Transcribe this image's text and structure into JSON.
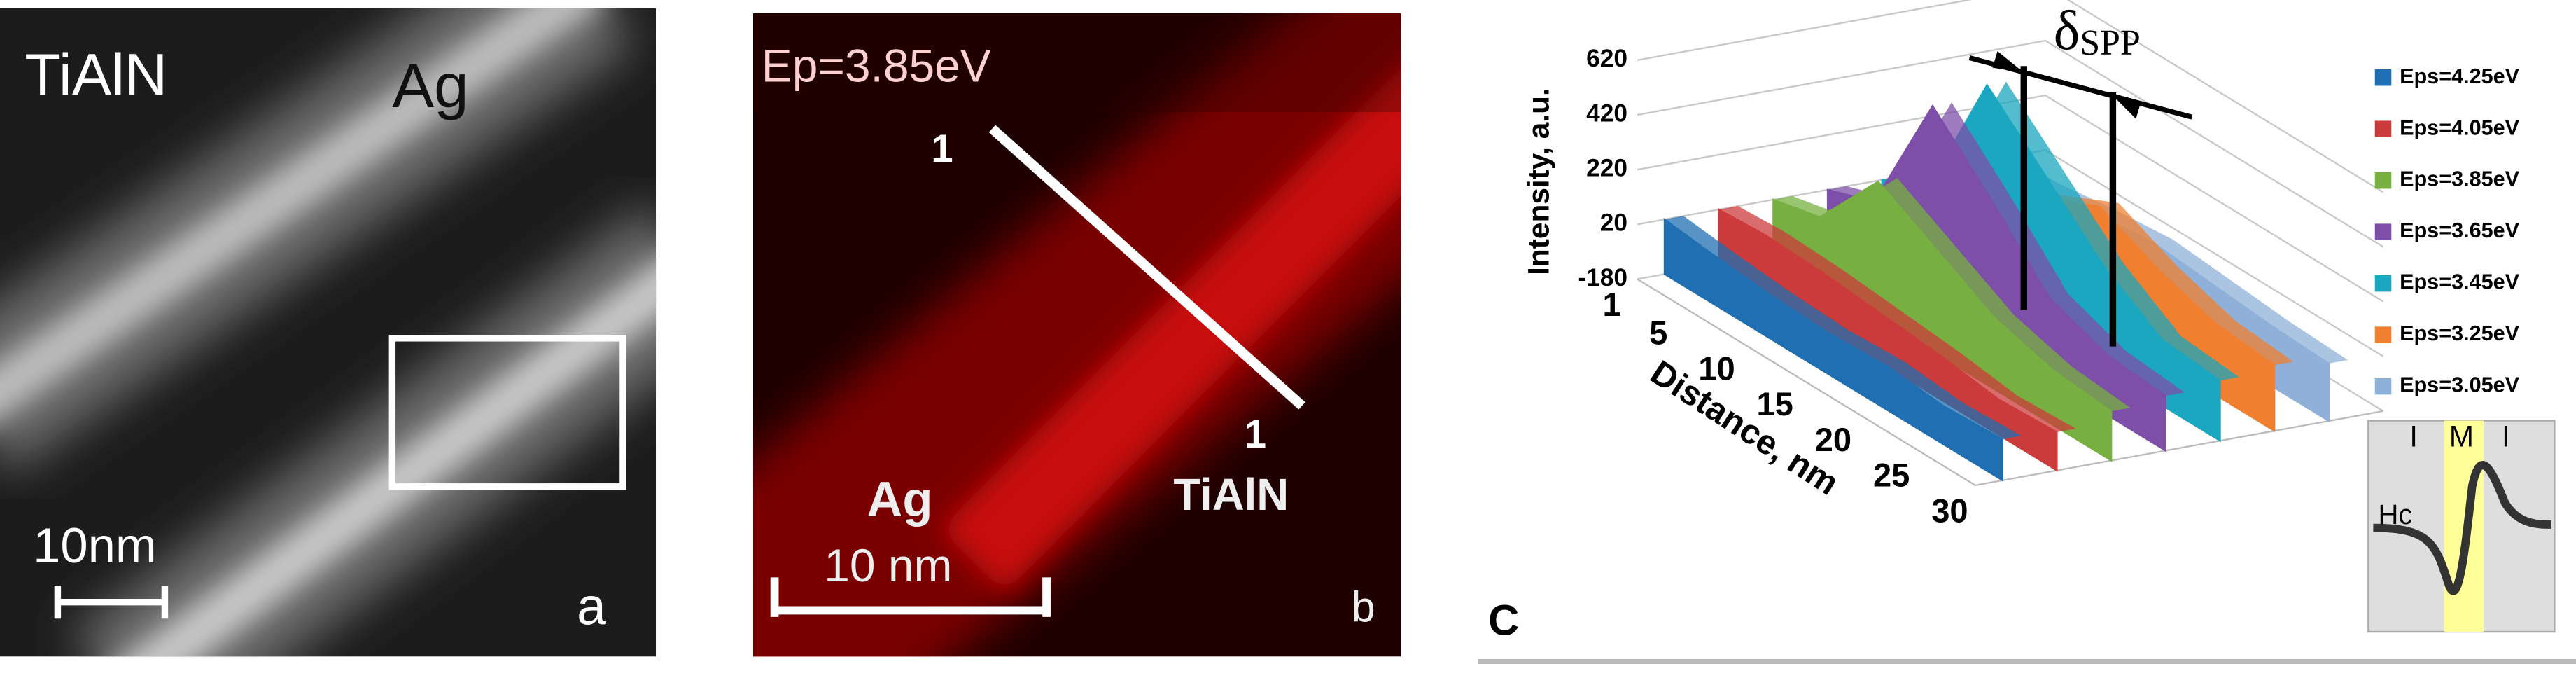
{
  "panel_a": {
    "label_material": "TiAlN",
    "label_metal": "Ag",
    "scale": "10nm",
    "letter": "a"
  },
  "panel_b": {
    "energy": "Ep=3.85eV",
    "start": "1",
    "end": "1",
    "label_metal": "Ag",
    "scale": "10 nm",
    "label_material": "TiAlN",
    "letter": "b"
  },
  "panel_c": {
    "letter": "C",
    "annotation_symbol": "δ",
    "annotation_subscript": "SPP",
    "inset": {
      "left": "I",
      "middle": "M",
      "right": "I",
      "field": "Hc"
    }
  },
  "chart_data": {
    "type": "area3d",
    "y_label": "Intensity, a.u.",
    "x_label": "Distance, nm",
    "x": [
      1,
      5,
      10,
      15,
      20,
      25,
      30
    ],
    "xticks": [
      1,
      5,
      10,
      15,
      20,
      25,
      30
    ],
    "ylim": [
      -180,
      620
    ],
    "yticks": [
      620,
      420,
      220,
      20,
      -180
    ],
    "series": [
      {
        "name": "Eps=4.25eV",
        "color": "#1f6fb2",
        "values": [
          20,
          0,
          -20,
          -30,
          -20,
          -40,
          -30
        ]
      },
      {
        "name": "Eps=4.05eV",
        "color": "#cc3b3b",
        "values": [
          20,
          30,
          20,
          0,
          -20,
          -50,
          -40
        ]
      },
      {
        "name": "Eps=3.85eV",
        "color": "#77b040",
        "values": [
          20,
          60,
          320,
          200,
          80,
          20,
          0
        ]
      },
      {
        "name": "Eps=3.65eV",
        "color": "#7d4fa8",
        "values": [
          20,
          80,
          560,
          350,
          120,
          40,
          20
        ]
      },
      {
        "name": "Eps=3.45eV",
        "color": "#1aa7bf",
        "values": [
          20,
          100,
          600,
          400,
          200,
          60,
          40
        ]
      },
      {
        "name": "Eps=3.25eV",
        "color": "#f08030",
        "values": [
          20,
          40,
          150,
          250,
          150,
          80,
          60
        ]
      },
      {
        "name": "Eps=3.05eV",
        "color": "#8fb0d8",
        "values": [
          20,
          30,
          60,
          80,
          60,
          40,
          30
        ]
      }
    ]
  }
}
